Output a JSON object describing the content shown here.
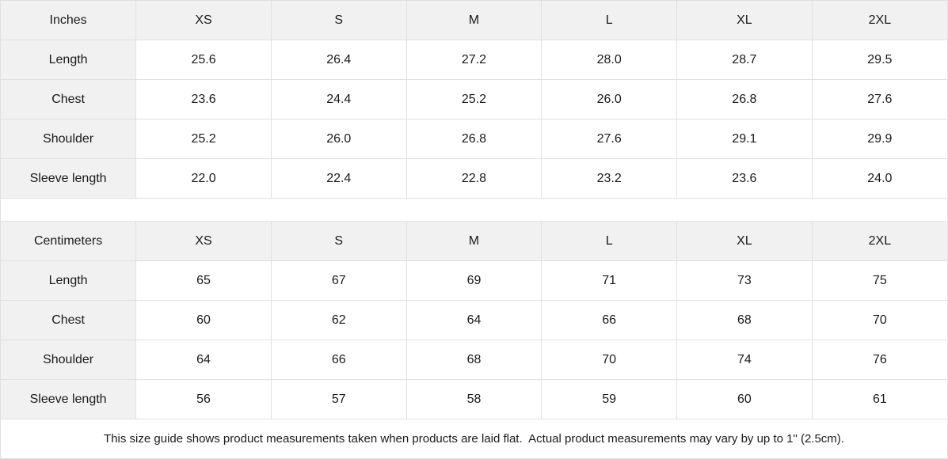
{
  "table": {
    "sections": [
      {
        "unit_label": "Inches",
        "sizes": [
          "XS",
          "S",
          "M",
          "L",
          "XL",
          "2XL"
        ],
        "rows": [
          {
            "label": "Length",
            "values": [
              "25.6",
              "26.4",
              "27.2",
              "28.0",
              "28.7",
              "29.5"
            ]
          },
          {
            "label": "Chest",
            "values": [
              "23.6",
              "24.4",
              "25.2",
              "26.0",
              "26.8",
              "27.6"
            ]
          },
          {
            "label": "Shoulder",
            "values": [
              "25.2",
              "26.0",
              "26.8",
              "27.6",
              "29.1",
              "29.9"
            ]
          },
          {
            "label": "Sleeve length",
            "values": [
              "22.0",
              "22.4",
              "22.8",
              "23.2",
              "23.6",
              "24.0"
            ]
          }
        ]
      },
      {
        "unit_label": "Centimeters",
        "sizes": [
          "XS",
          "S",
          "M",
          "L",
          "XL",
          "2XL"
        ],
        "rows": [
          {
            "label": "Length",
            "values": [
              "65",
              "67",
              "69",
              "71",
              "73",
              "75"
            ]
          },
          {
            "label": "Chest",
            "values": [
              "60",
              "62",
              "64",
              "66",
              "68",
              "70"
            ]
          },
          {
            "label": "Shoulder",
            "values": [
              "64",
              "66",
              "68",
              "70",
              "74",
              "76"
            ]
          },
          {
            "label": "Sleeve length",
            "values": [
              "56",
              "57",
              "58",
              "59",
              "60",
              "61"
            ]
          }
        ]
      }
    ]
  },
  "footer": {
    "note": "This size guide shows product measurements taken when products are laid flat.  Actual product measurements may vary by up to 1\" (2.5cm)."
  },
  "colors": {
    "header_bg": "#f1f1f2",
    "border": "#e0e0e0",
    "text": "#1a1a1a"
  }
}
